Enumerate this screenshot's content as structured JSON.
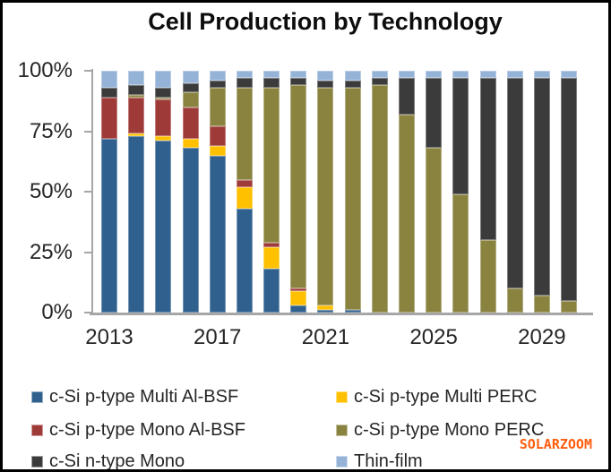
{
  "title": "Cell Production by Technology",
  "watermark": {
    "text": "SOLARZOOM",
    "color": "#FF5E0F"
  },
  "chart_data": {
    "type": "bar",
    "stacked": true,
    "units": "%",
    "title": "Cell Production by Technology",
    "categories": [
      "2013",
      "2014",
      "2015",
      "2016",
      "2017",
      "2018",
      "2019",
      "2020",
      "2021",
      "2022",
      "2023",
      "2024",
      "2025",
      "2026",
      "2027",
      "2028",
      "2029",
      "2030"
    ],
    "x_tick_labels": [
      "2013",
      "2017",
      "2021",
      "2025",
      "2029"
    ],
    "x_tick_indices": [
      0,
      4,
      8,
      12,
      16
    ],
    "y_tick_labels": [
      "100%",
      "75%",
      "50%",
      "25%",
      "0%"
    ],
    "ylim": [
      0,
      100
    ],
    "grid": false,
    "legend_position": "bottom",
    "legend_columns": 2,
    "series": [
      {
        "name": "c-Si p-type Multi Al-BSF",
        "color": "#30618E",
        "values": [
          72,
          73,
          71,
          68,
          65,
          43,
          18,
          3,
          1,
          1,
          0,
          0,
          0,
          0,
          0,
          0,
          0,
          0
        ]
      },
      {
        "name": "c-Si p-type Multi PERC",
        "color": "#FFC000",
        "values": [
          0,
          1,
          2,
          4,
          4,
          9,
          9,
          6,
          2,
          0,
          0,
          0,
          0,
          0,
          0,
          0,
          0,
          0
        ]
      },
      {
        "name": "c-Si p-type Mono Al-BSF",
        "color": "#9E3A38",
        "values": [
          17,
          15,
          15,
          13,
          8,
          3,
          2,
          1,
          0,
          0,
          0,
          0,
          0,
          0,
          0,
          0,
          0,
          0
        ]
      },
      {
        "name": "c-Si p-type Mono PERC",
        "color": "#8A8340",
        "values": [
          0,
          1,
          1,
          6,
          16,
          38,
          64,
          84,
          90,
          92,
          94,
          82,
          68,
          49,
          30,
          10,
          7,
          5
        ]
      },
      {
        "name": "c-Si n-type Mono",
        "color": "#3B3B3B",
        "values": [
          4,
          4,
          4,
          4,
          3,
          4,
          4,
          3,
          3,
          3,
          3,
          15,
          29,
          48,
          67,
          87,
          90,
          92
        ]
      },
      {
        "name": "Thin-film",
        "color": "#95B3D7",
        "values": [
          7,
          6,
          7,
          5,
          4,
          3,
          3,
          3,
          4,
          4,
          3,
          3,
          3,
          3,
          3,
          3,
          3,
          3
        ]
      }
    ]
  }
}
